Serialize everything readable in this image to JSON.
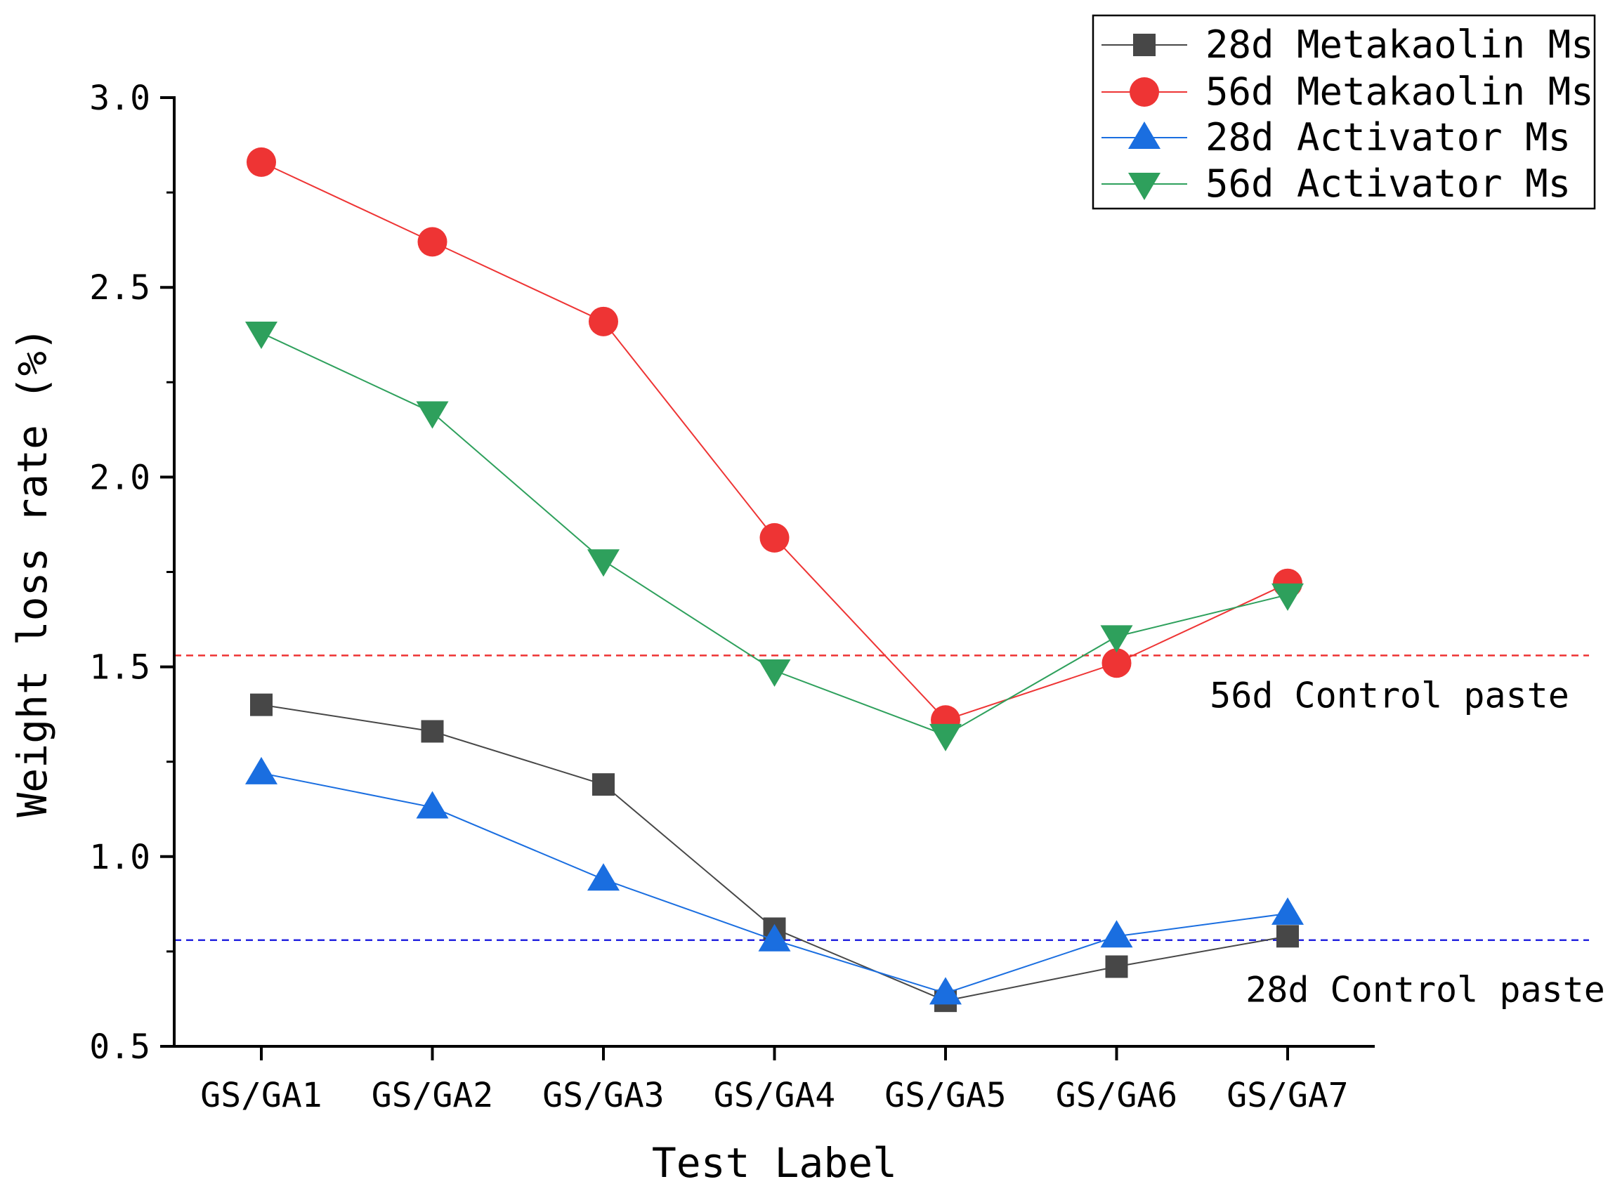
{
  "chart_data": {
    "type": "line",
    "title": "",
    "xlabel": "Test Label",
    "ylabel": "Weight loss rate (%)",
    "categories": [
      "GS/GA1",
      "GS/GA2",
      "GS/GA3",
      "GS/GA4",
      "GS/GA5",
      "GS/GA6",
      "GS/GA7"
    ],
    "ylim": [
      0.5,
      3.0
    ],
    "yticks": [
      0.5,
      1.0,
      1.5,
      2.0,
      2.5,
      3.0
    ],
    "ytick_labels": [
      "0.5",
      "1.0",
      "1.5",
      "2.0",
      "2.5",
      "3.0"
    ],
    "grid": false,
    "legend_position": "top-right",
    "series": [
      {
        "name": "28d Metakaolin Ms",
        "marker": "square",
        "color": "#474747",
        "values": [
          1.4,
          1.33,
          1.19,
          0.81,
          0.62,
          0.71,
          0.79
        ]
      },
      {
        "name": "56d Metakaolin Ms",
        "marker": "circle",
        "color": "#EE3434",
        "values": [
          2.83,
          2.62,
          2.41,
          1.84,
          1.36,
          1.51,
          1.72
        ]
      },
      {
        "name": "28d Activator Ms",
        "marker": "triangle-up",
        "color": "#1A6EE0",
        "values": [
          1.22,
          1.13,
          0.94,
          0.78,
          0.64,
          0.79,
          0.85
        ]
      },
      {
        "name": "56d Activator Ms",
        "marker": "triangle-down",
        "color": "#2EA05C",
        "values": [
          2.38,
          2.17,
          1.78,
          1.49,
          1.32,
          1.58,
          1.69
        ]
      }
    ],
    "reference_lines": [
      {
        "label": "56d Control paste",
        "value": 1.53,
        "color": "#EE3434",
        "style": "dashed"
      },
      {
        "label": "28d Control paste",
        "value": 0.78,
        "color": "#2424E0",
        "style": "dashed"
      }
    ]
  }
}
